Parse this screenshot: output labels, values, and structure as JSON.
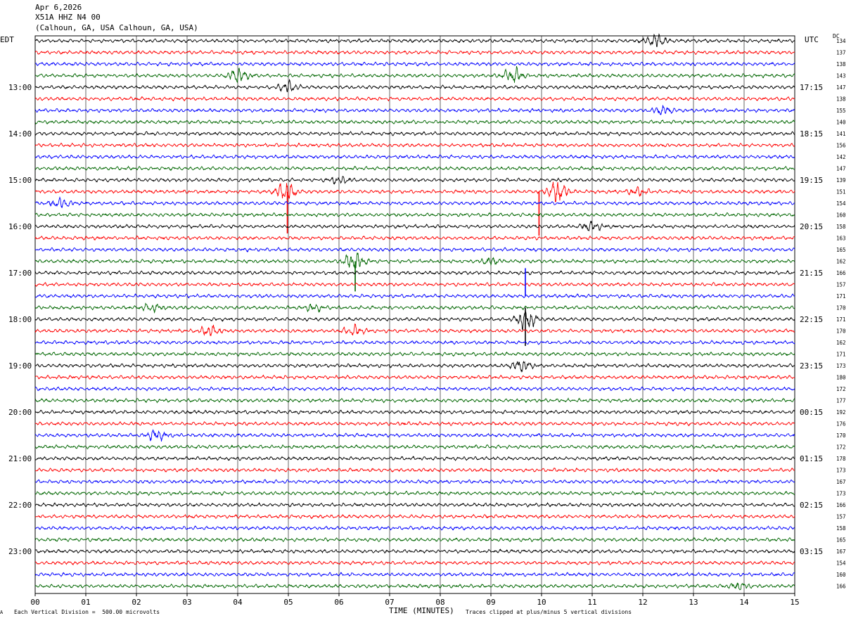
{
  "header": {
    "date": "Apr 6,2026",
    "station": "X51A HHZ N4 00",
    "location": "(Calhoun, GA, USA Calhoun, GA, USA)"
  },
  "left_axis_label": "EDT",
  "right_axis_label": "UTC",
  "dc_label": "DC",
  "footer": {
    "scale_note": "Each Vertical Division =  500.00 microvolts",
    "clip_note": "Traces clipped at plus/minus 5 vertical divisions",
    "corner_mark": "A"
  },
  "colors": {
    "trace_cycle": [
      "#000000",
      "#ff0000",
      "#0000ff",
      "#006600"
    ],
    "grid": "#000000"
  },
  "chart_data": {
    "type": "line",
    "title": "",
    "xlabel": "TIME (MINUTES)",
    "ylabel": "",
    "x_range": [
      0,
      15
    ],
    "x_ticks": [
      "00",
      "01",
      "02",
      "03",
      "04",
      "05",
      "06",
      "07",
      "08",
      "09",
      "10",
      "11",
      "12",
      "13",
      "14",
      "15"
    ],
    "grid": true,
    "trace_minutes": 15,
    "traces_per_hour": 4,
    "left_time_labels": [
      "13:00",
      "14:00",
      "15:00",
      "16:00",
      "17:00",
      "18:00",
      "19:00",
      "20:00",
      "21:00",
      "22:00",
      "23:00"
    ],
    "right_time_labels": [
      "17:15",
      "18:15",
      "19:15",
      "20:15",
      "21:15",
      "22:15",
      "23:15",
      "00:15",
      "01:15",
      "02:15",
      "03:15"
    ],
    "dc_values": [
      "134",
      "137",
      "138",
      "143",
      "147",
      "138",
      "155",
      "140",
      "141",
      "156",
      "142",
      "147",
      "139",
      "151",
      "154",
      "160",
      "158",
      "163",
      "165",
      "162",
      "166",
      "157",
      "171",
      "170",
      "171",
      "170",
      "162",
      "171",
      "173",
      "180",
      "172",
      "177",
      "192",
      "176",
      "170",
      "172",
      "178",
      "173",
      "167",
      "173",
      "166",
      "157",
      "158",
      "165",
      "167",
      "154",
      "160",
      "166"
    ],
    "events": [
      {
        "trace": 0,
        "minute": 12.25,
        "amp": 2.0
      },
      {
        "trace": 3,
        "minute": 4.0,
        "amp": 2.2
      },
      {
        "trace": 3,
        "minute": 9.45,
        "amp": 2.4
      },
      {
        "trace": 4,
        "minute": 5.0,
        "amp": 1.6
      },
      {
        "trace": 6,
        "minute": 12.4,
        "amp": 1.2
      },
      {
        "trace": 12,
        "minute": 6.0,
        "amp": 1.0
      },
      {
        "trace": 13,
        "minute": 4.95,
        "amp": 3.2
      },
      {
        "trace": 13,
        "minute": 10.3,
        "amp": 3.4
      },
      {
        "trace": 13,
        "minute": 11.9,
        "amp": 1.4
      },
      {
        "trace": 14,
        "minute": 0.5,
        "amp": 1.4
      },
      {
        "trace": 16,
        "minute": 11.0,
        "amp": 1.3
      },
      {
        "trace": 19,
        "minute": 6.3,
        "amp": 3.0
      },
      {
        "trace": 19,
        "minute": 9.0,
        "amp": 1.0
      },
      {
        "trace": 23,
        "minute": 2.3,
        "amp": 1.2
      },
      {
        "trace": 23,
        "minute": 5.5,
        "amp": 1.0
      },
      {
        "trace": 24,
        "minute": 9.7,
        "amp": 3.4
      },
      {
        "trace": 25,
        "minute": 3.45,
        "amp": 1.6
      },
      {
        "trace": 25,
        "minute": 6.3,
        "amp": 1.5
      },
      {
        "trace": 28,
        "minute": 9.6,
        "amp": 1.8
      },
      {
        "trace": 34,
        "minute": 2.4,
        "amp": 1.6
      },
      {
        "trace": 47,
        "minute": 13.9,
        "amp": 1.0
      }
    ],
    "spikes": [
      {
        "trace": 13,
        "minute": 4.98,
        "down": 3.6
      },
      {
        "trace": 13,
        "minute": 9.95,
        "down": 3.8
      },
      {
        "trace": 19,
        "minute": 6.32,
        "down": 2.6
      },
      {
        "trace": 22,
        "minute": 9.68,
        "up": 2.4
      },
      {
        "trace": 24,
        "minute": 9.68,
        "up": 1.0,
        "down": 2.3
      }
    ]
  }
}
